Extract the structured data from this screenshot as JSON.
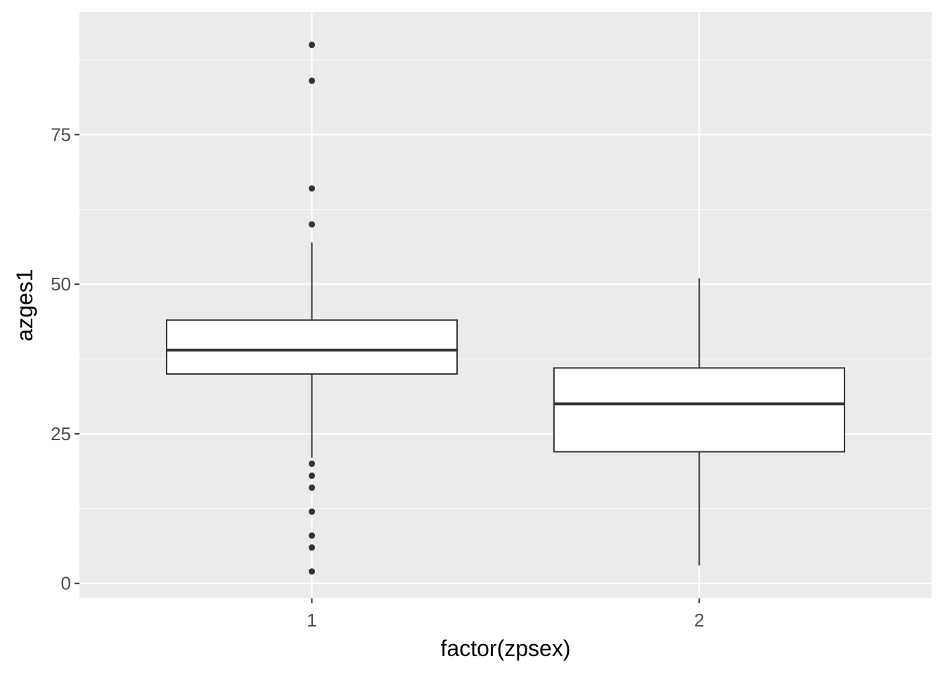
{
  "chart_data": {
    "type": "boxplot",
    "xlabel": "factor(zpsex)",
    "ylabel": "azges1",
    "categories": [
      "1",
      "2"
    ],
    "ylim": [
      -2.5,
      95.5
    ],
    "yticks": [
      0,
      25,
      50,
      75
    ],
    "grid": true,
    "colors": {
      "panel": "#ebebeb",
      "grid": "#ffffff",
      "box_fill": "#ffffff",
      "line": "#333333",
      "tick_text": "#4d4d4d"
    },
    "boxes": [
      {
        "category": "1",
        "whisker_low": 21,
        "q1": 35,
        "median": 39,
        "q3": 44,
        "whisker_high": 57,
        "outliers": [
          90,
          84,
          66,
          60,
          20,
          18,
          16,
          12,
          8,
          6,
          2
        ]
      },
      {
        "category": "2",
        "whisker_low": 3,
        "q1": 22,
        "median": 30,
        "q3": 36,
        "whisker_high": 51,
        "outliers": []
      }
    ]
  }
}
